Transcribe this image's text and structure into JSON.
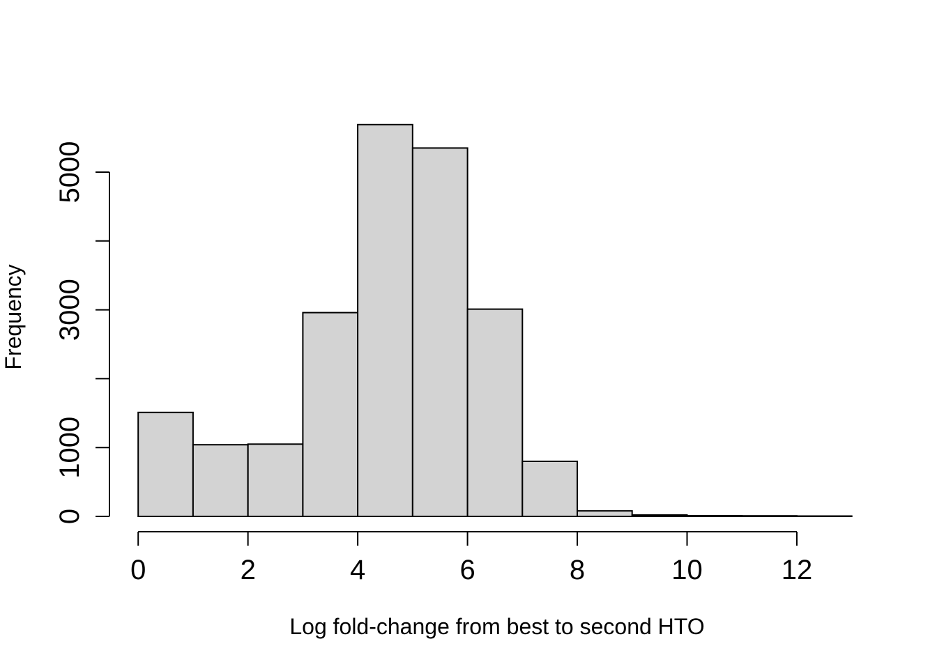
{
  "chart_data": {
    "type": "bar",
    "subtype": "histogram",
    "title": "",
    "xlabel": "Log fold-change from best to second HTO",
    "ylabel": "Frequency",
    "bin_edges": [
      0,
      1,
      2,
      3,
      4,
      5,
      6,
      7,
      8,
      9,
      10,
      11,
      12,
      13
    ],
    "counts": [
      1510,
      1040,
      1050,
      2960,
      5690,
      5350,
      3010,
      800,
      80,
      20,
      10,
      8,
      5
    ],
    "xlim": [
      0,
      13
    ],
    "ylim": [
      0,
      5690
    ],
    "x_axis_range_drawn": [
      0,
      12
    ],
    "y_axis_range_drawn": [
      0,
      5000
    ],
    "x_ticks": [
      0,
      2,
      4,
      6,
      8,
      10,
      12
    ],
    "x_tick_labels": [
      "0",
      "2",
      "4",
      "6",
      "8",
      "10",
      "12"
    ],
    "y_ticks": [
      0,
      1000,
      2000,
      3000,
      4000,
      5000
    ],
    "y_tick_labels": [
      "0",
      "1000",
      "",
      "3000",
      "",
      "5000"
    ],
    "grid": "off",
    "legend": "none",
    "colors": {
      "bar_fill": "#d3d3d3",
      "bar_stroke": "#000000",
      "axis": "#000000",
      "background": "#ffffff"
    }
  }
}
